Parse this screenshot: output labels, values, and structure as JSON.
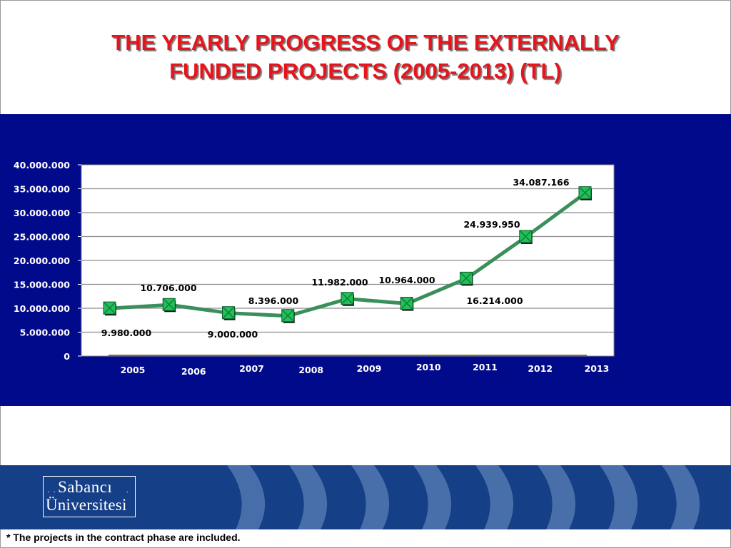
{
  "slide": {
    "title_line1": "THE YEARLY PROGRESS OF THE EXTERNALLY",
    "title_line2": "FUNDED PROJECTS (2005-2013) (TL)",
    "footnote": "* The projects in the contract phase are included.",
    "logo_line1": "Sabancı",
    "logo_line2": "Üniversitesi",
    "logo_dots": "."
  },
  "colors": {
    "title": "#e8141c",
    "band": "#020a8c",
    "line": "#3a8f5a",
    "marker": "#21c15a",
    "footer": "#153f86"
  },
  "chart_data": {
    "type": "line",
    "title": "",
    "xlabel": "",
    "ylabel": "",
    "categories": [
      "2005",
      "2006",
      "2007",
      "2008",
      "2009",
      "2010",
      "2011",
      "2012",
      "2013"
    ],
    "series": [
      {
        "values": [
          9980000,
          10706000,
          9000000,
          8396000,
          11982000,
          10964000,
          16214000,
          24939950,
          34087166
        ]
      }
    ],
    "data_labels": [
      "9.980.000",
      "10.706.000",
      "9.000.000",
      "8.396.000",
      "11.982.000",
      "10.964.000",
      "16.214.000",
      "24.939.950",
      "34.087.166"
    ],
    "y_ticks": [
      0,
      5000000,
      10000000,
      15000000,
      20000000,
      25000000,
      30000000,
      35000000,
      40000000
    ],
    "y_tick_labels": [
      "0",
      "5.000.000",
      "10.000.000",
      "15.000.000",
      "20.000.000",
      "25.000.000",
      "30.000.000",
      "35.000.000",
      "40.000.000"
    ],
    "ylim": [
      0,
      40000000
    ],
    "grid": true,
    "legend": "none"
  }
}
